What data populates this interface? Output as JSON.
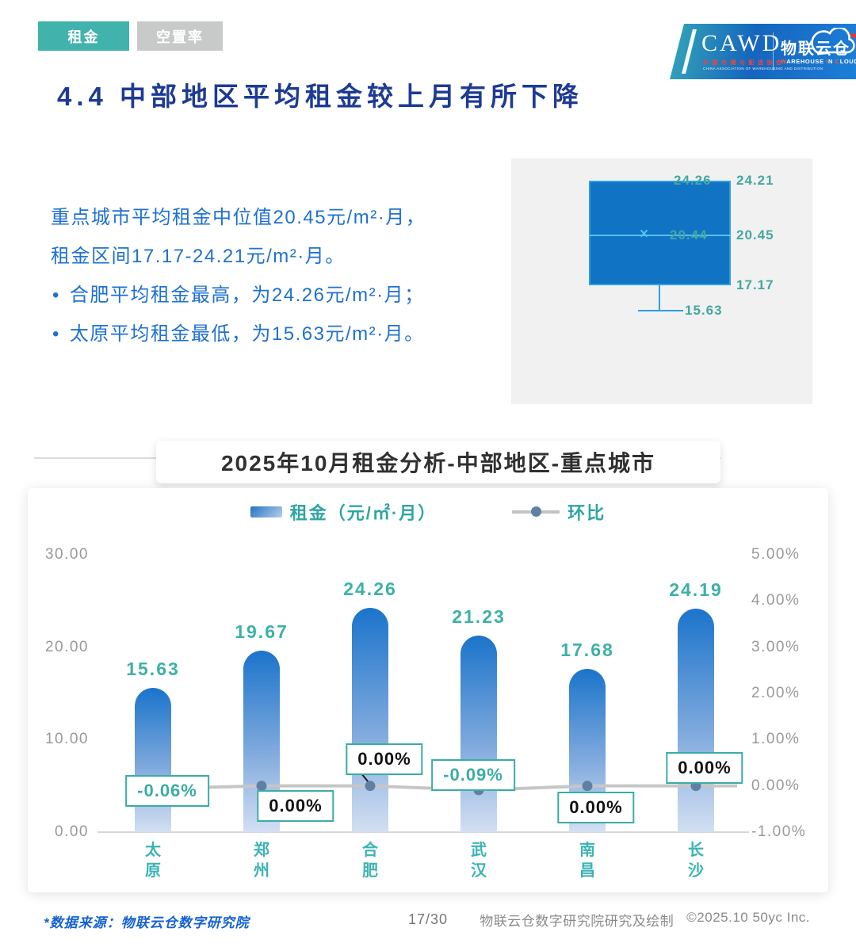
{
  "tabs": [
    {
      "label": "租金",
      "active": true
    },
    {
      "label": "空置率",
      "active": false
    }
  ],
  "logo": {
    "cawd": "CAWD",
    "cawd_sub_cn": "中国仓储与配送协会",
    "cawd_sub_en": "CHINA ASSOCIATION OF WAREHOUSING AND DISTRIBUTION",
    "brand": "物联云仓",
    "brand_sub_parts": [
      [
        "W",
        1
      ],
      [
        "AREHOUSE ",
        0
      ],
      [
        "I",
        1
      ],
      [
        "N ",
        0
      ],
      [
        "C",
        1
      ],
      [
        "LOUD",
        0
      ]
    ]
  },
  "page_title": "4.4 中部地区平均租金较上月有所下降",
  "summary": {
    "line1": "重点城市平均租金中位值20.45元/m²·月，",
    "line2": "租金区间17.17-24.21元/m²·月。",
    "bullets": [
      "合肥平均租金最高，为24.26元/m²·月；",
      "太原平均租金最低，为15.63元/m²·月。"
    ]
  },
  "boxplot": {
    "label_max": "24.26",
    "label_upper": "24.21",
    "label_mean": "20.44",
    "label_median": "20.45",
    "label_lower": "17.17",
    "label_min": "15.63"
  },
  "chart_data": {
    "type": "bar+line",
    "title": "2025年10月租金分析-中部地区-重点城市",
    "legend": [
      {
        "label": "租金（元/㎡·月）",
        "marker": "bar"
      },
      {
        "label": "环比",
        "marker": "line"
      }
    ],
    "categories": [
      "太原",
      "郑州",
      "合肥",
      "武汉",
      "南昌",
      "长沙"
    ],
    "series": [
      {
        "name": "租金（元/㎡·月）",
        "type": "bar",
        "axis": "left",
        "values": [
          15.63,
          19.67,
          24.26,
          21.23,
          17.68,
          24.19
        ],
        "labels": [
          "15.63",
          "19.67",
          "24.26",
          "21.23",
          "17.68",
          "24.19"
        ]
      },
      {
        "name": "环比",
        "type": "line",
        "axis": "right",
        "values": [
          -0.06,
          0.0,
          0.0,
          -0.09,
          0.0,
          0.0
        ],
        "labels": [
          "-0.06%",
          "0.00%",
          "0.00%",
          "-0.09%",
          "0.00%",
          "0.00%"
        ],
        "label_placements": [
          {
            "dx": 18,
            "dy": 3
          },
          {
            "dx": 43,
            "dy": 25
          },
          {
            "dx": 18,
            "dy": -34,
            "connector": true
          },
          {
            "dx": -7,
            "dy": -19
          },
          {
            "dx": 11,
            "dy": 27
          },
          {
            "dx": 11,
            "dy": -23
          }
        ]
      }
    ],
    "left_axis": {
      "ticks": [
        "30.00",
        "20.00",
        "10.00",
        "0.00"
      ],
      "min": 0,
      "max": 30
    },
    "right_axis": {
      "ticks": [
        "5.00%",
        "4.00%",
        "3.00%",
        "2.00%",
        "1.00%",
        "0.00%",
        "-1.00%"
      ],
      "min": -1,
      "max": 5
    },
    "grid": false,
    "legend_position": "top-center"
  },
  "footer": {
    "source": "*数据来源：物联云仓数字研究院",
    "page": "17/30",
    "credit": "物联云仓数字研究院研究及绘制",
    "copyright": "©2025.10 50yc Inc."
  },
  "colors": {
    "accent_teal": "#3aaca6",
    "tab_active": "#41b2ac",
    "tab_inactive": "#c8cac9",
    "title_navy": "#1d3a94",
    "body_blue": "#1e71d0",
    "bar_top": "#1b74cb",
    "bar_bottom": "#d3dff2",
    "box_fill": "#1173c4",
    "box_border": "#2f9fe0",
    "line_gray": "#c6c6c6",
    "dot_blue": "#5e81a3",
    "axis_gray": "#999999"
  }
}
